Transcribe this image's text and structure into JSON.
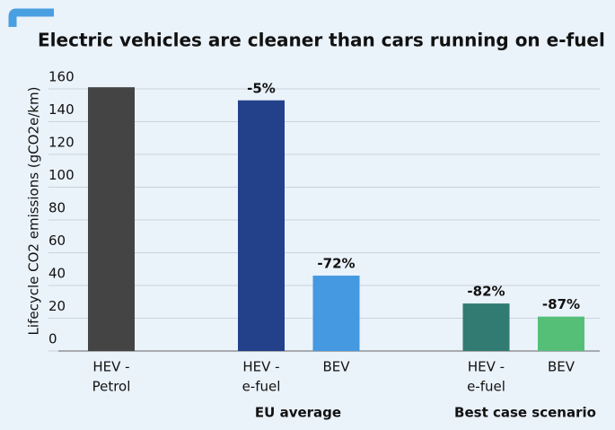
{
  "chart_data": {
    "type": "bar",
    "title": "Electric vehicles are cleaner than cars running on e-fuel",
    "y_label": "Lifecycle CO2 emissions (gCO2e/km)",
    "categories": [
      [
        "HEV -",
        "Petrol"
      ],
      [
        "HEV -",
        "e-fuel"
      ],
      [
        "BEV"
      ],
      [
        "HEV -",
        "e-fuel"
      ],
      [
        "BEV"
      ]
    ],
    "values": [
      161,
      153,
      46,
      29,
      21
    ],
    "colors": [
      "#444444",
      "#23418b",
      "#4499e0",
      "#327b73",
      "#55bf78"
    ],
    "change_labels": [
      null,
      "-5%",
      "-72%",
      "-82%",
      "-87%"
    ],
    "group_labels": [
      "EU average",
      "Best case scenario"
    ],
    "ylim": [
      0,
      160
    ],
    "yticks": [
      0,
      20,
      40,
      60,
      80,
      100,
      120,
      140,
      160
    ],
    "grid": true
  }
}
